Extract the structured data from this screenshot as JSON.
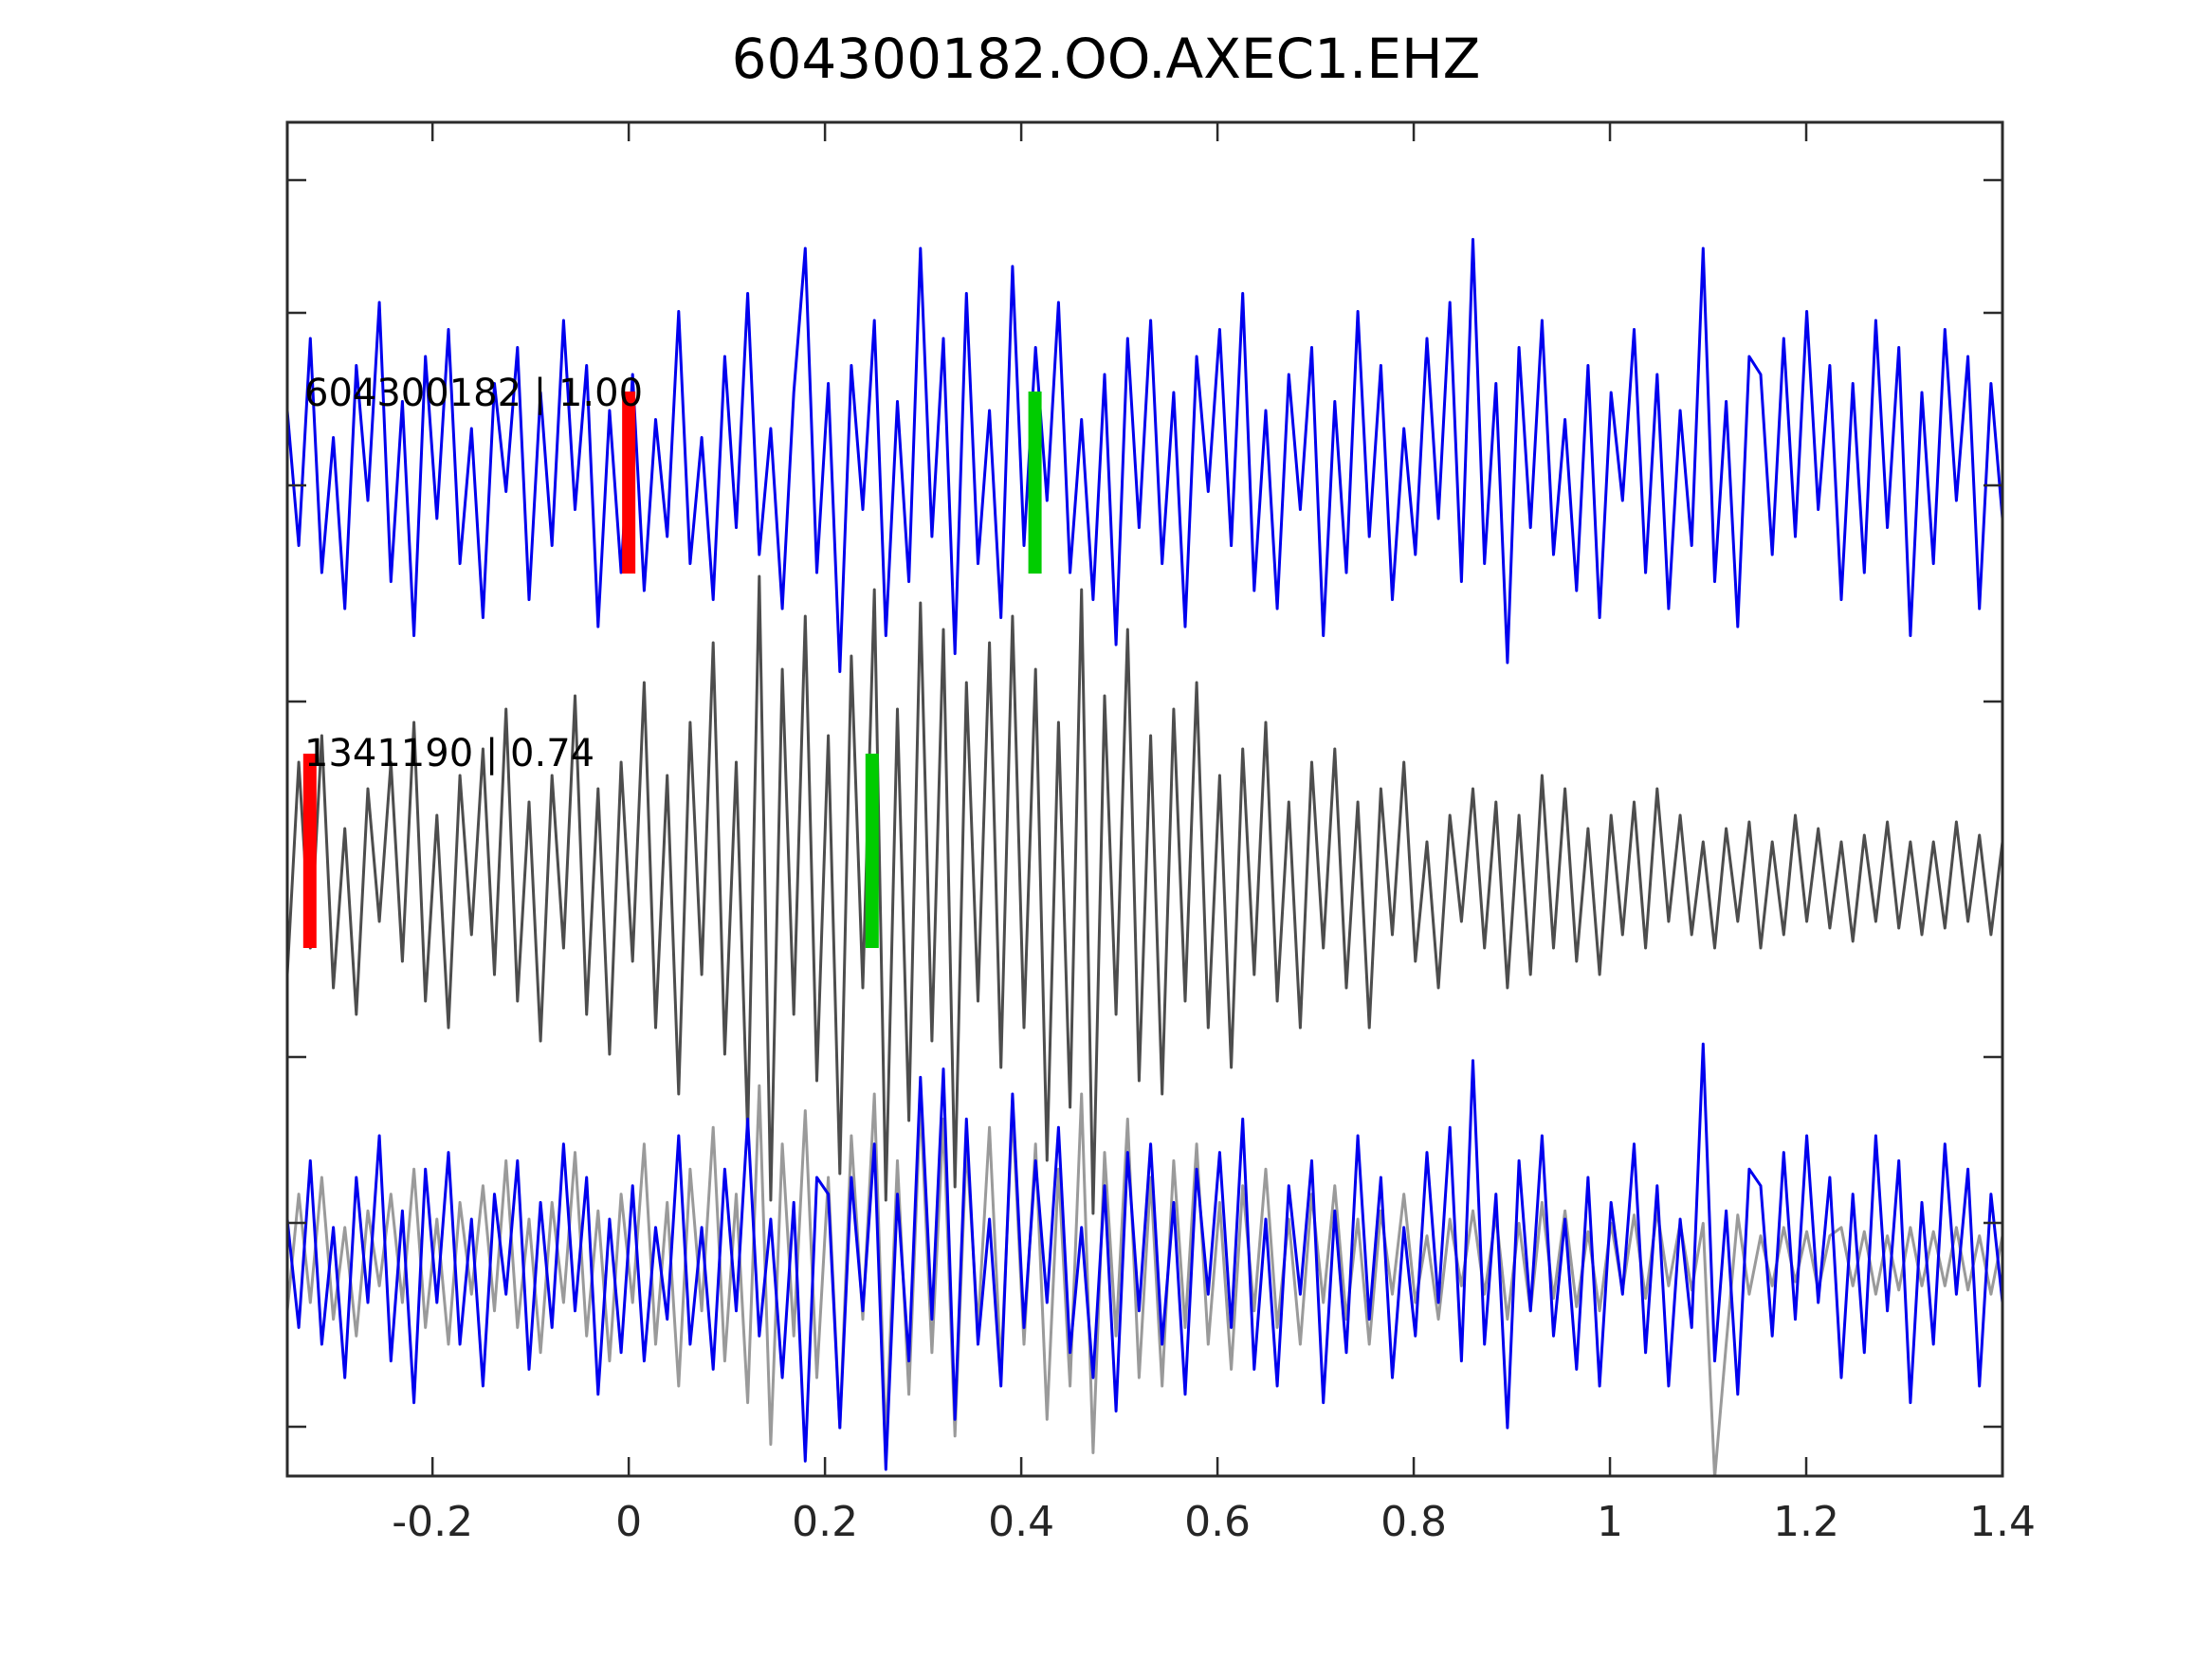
{
  "title": "604300182.OO.AXEC1.EHZ",
  "chart_data": {
    "type": "line",
    "title": "604300182.OO.AXEC1.EHZ",
    "xlabel": "",
    "ylabel": "",
    "xlim": [
      -0.348,
      1.4
    ],
    "grid": false,
    "legend": "none",
    "background": "#ffffff",
    "xticks": {
      "values": [
        -0.2,
        0,
        0.2,
        0.4,
        0.6,
        0.8,
        1.0,
        1.2,
        1.4
      ],
      "labels": [
        "-0.2",
        "0",
        "0.2",
        "0.4",
        "0.6",
        "0.8",
        "1",
        "1.2",
        "1.4"
      ]
    },
    "colors": {
      "blue": "#0000EE",
      "dark_gray": "#4D4D4D",
      "light_gray": "#9A9A9A",
      "red": "#FF0000",
      "green": "#00CC00",
      "axis": "#2b2b2b"
    },
    "traces": [
      {
        "id": "template",
        "label": "604300182 | 1.00",
        "event_id": "604300182",
        "correlation": "1.00",
        "markers": [
          {
            "t": 0.0,
            "color": "red"
          },
          {
            "t": 0.414,
            "color": "green"
          }
        ],
        "series": [
          {
            "color": "blue",
            "values": [
              0.6,
              -0.9,
              1.4,
              -1.2,
              0.3,
              -1.6,
              1.1,
              -0.4,
              1.8,
              -1.3,
              0.7,
              -1.9,
              1.2,
              -0.6,
              1.5,
              -1.1,
              0.4,
              -1.7,
              0.9,
              -0.3,
              1.3,
              -1.5,
              0.8,
              -0.9,
              1.6,
              -0.5,
              1.1,
              -1.8,
              0.6,
              -1.2,
              1.0,
              -1.4,
              0.5,
              -0.8,
              1.7,
              -1.1,
              0.3,
              -1.5,
              1.2,
              -0.7,
              1.9,
              -1.0,
              0.4,
              -1.6,
              0.8,
              2.4,
              -1.2,
              0.9,
              -2.3,
              1.1,
              -0.5,
              1.6,
              -1.9,
              0.7,
              -1.3,
              2.4,
              -0.8,
              1.4,
              -2.1,
              1.9,
              -1.1,
              0.6,
              -1.7,
              2.2,
              -0.9,
              1.3,
              -0.4,
              1.8,
              -1.2,
              0.5,
              -1.5,
              1.0,
              -2.0,
              1.4,
              -0.7,
              1.6,
              -1.1,
              0.8,
              -1.8,
              1.2,
              -0.3,
              1.5,
              -0.9,
              1.9,
              -1.4,
              0.6,
              -1.6,
              1.0,
              -0.5,
              1.3,
              -1.9,
              0.7,
              -1.2,
              1.7,
              -0.8,
              1.1,
              -1.5,
              0.4,
              -1.0,
              1.4,
              -0.6,
              1.8,
              -1.3,
              2.5,
              -1.1,
              0.9,
              -2.2,
              1.3,
              -0.7,
              1.6,
              -1.0,
              0.5,
              -1.4,
              1.1,
              -1.7,
              0.8,
              -0.4,
              1.5,
              -1.2,
              1.0,
              -1.6,
              0.6,
              -0.9,
              2.4,
              -1.3,
              0.7,
              -1.8,
              1.2,
              1.0,
              -1.0,
              1.4,
              -0.8,
              1.7,
              -0.5,
              1.1,
              -1.5,
              0.9,
              -1.2,
              1.6,
              -0.7,
              1.3,
              -1.9,
              0.8,
              -1.1,
              1.5,
              -0.4,
              1.2,
              -1.6,
              0.9,
              -0.6
            ]
          }
        ]
      },
      {
        "id": "detection",
        "label": "1341190 | 0.74",
        "event_id": "1341190",
        "correlation": "0.74",
        "markers": [
          {
            "t": -0.325,
            "color": "red"
          },
          {
            "t": 0.248,
            "color": "green"
          }
        ],
        "series": [
          {
            "color": "dark_gray",
            "values": [
              -0.7,
              0.9,
              -0.5,
              1.1,
              -0.8,
              0.4,
              -1.0,
              0.7,
              -0.3,
              0.9,
              -0.6,
              1.2,
              -0.9,
              0.5,
              -1.1,
              0.8,
              -0.4,
              1.0,
              -0.7,
              1.3,
              -0.9,
              0.6,
              -1.2,
              0.8,
              -0.5,
              1.4,
              -1.0,
              0.7,
              -1.3,
              0.9,
              -0.6,
              1.5,
              -1.1,
              0.8,
              -1.6,
              1.2,
              -0.7,
              1.8,
              -1.3,
              0.9,
              -1.9,
              2.3,
              -2.4,
              1.6,
              -1.0,
              2.0,
              -1.5,
              1.1,
              -2.2,
              1.7,
              -0.8,
              2.2,
              -2.4,
              1.3,
              -1.8,
              2.1,
              -1.2,
              1.9,
              -2.3,
              1.5,
              -0.9,
              1.8,
              -1.4,
              2.0,
              -1.1,
              1.6,
              -2.1,
              1.2,
              -1.7,
              2.2,
              -2.5,
              1.4,
              -1.0,
              1.9,
              -1.5,
              1.1,
              -1.6,
              1.3,
              -0.9,
              1.5,
              -1.1,
              0.8,
              -1.4,
              1.0,
              -0.7,
              1.2,
              -0.9,
              0.6,
              -1.1,
              0.9,
              -0.5,
              1.0,
              -0.8,
              0.6,
              -1.1,
              0.7,
              -0.4,
              0.9,
              -0.6,
              0.3,
              -0.8,
              0.5,
              -0.3,
              0.7,
              -0.5,
              0.6,
              -0.8,
              0.5,
              -0.7,
              0.8,
              -0.5,
              0.7,
              -0.6,
              0.4,
              -0.7,
              0.5,
              -0.4,
              0.6,
              -0.5,
              0.7,
              -0.3,
              0.5,
              -0.4,
              0.3,
              -0.5,
              0.4,
              -0.3,
              0.45,
              -0.5,
              0.3,
              -0.4,
              0.5,
              -0.3,
              0.4,
              -0.35,
              0.3,
              -0.45,
              0.35,
              -0.3,
              0.45,
              -0.35,
              0.3,
              -0.4,
              0.3,
              -0.35,
              0.45,
              -0.3,
              0.35,
              -0.4,
              0.3
            ]
          }
        ]
      },
      {
        "id": "overlay",
        "label": "",
        "markers": [],
        "series": [
          {
            "color": "light_gray",
            "values": [
              -0.6,
              0.8,
              -0.5,
              1.0,
              -0.7,
              0.4,
              -0.9,
              0.6,
              -0.3,
              0.8,
              -0.5,
              1.1,
              -0.8,
              0.5,
              -1.0,
              0.7,
              -0.4,
              0.9,
              -0.6,
              1.2,
              -0.8,
              0.5,
              -1.1,
              0.7,
              -0.5,
              1.3,
              -0.9,
              0.6,
              -1.2,
              0.8,
              -0.5,
              1.4,
              -1.0,
              0.7,
              -1.5,
              1.1,
              -0.6,
              1.6,
              -1.2,
              0.8,
              -1.7,
              2.1,
              -2.2,
              1.4,
              -0.9,
              1.8,
              -1.4,
              1.0,
              -2.0,
              1.5,
              -0.7,
              2.0,
              -2.2,
              1.2,
              -1.6,
              1.9,
              -1.1,
              1.7,
              -2.1,
              1.4,
              -0.8,
              1.6,
              -1.3,
              1.8,
              -1.0,
              1.4,
              -1.9,
              1.1,
              -1.5,
              2.0,
              -2.3,
              1.3,
              -0.9,
              1.7,
              -1.4,
              1.0,
              -1.5,
              1.2,
              -0.8,
              1.4,
              -1.0,
              0.7,
              -1.3,
              0.9,
              -0.6,
              1.1,
              -0.8,
              0.5,
              -1.0,
              0.8,
              -0.5,
              0.9,
              -0.7,
              0.5,
              -1.0,
              0.6,
              -0.4,
              0.8,
              -0.5,
              0.3,
              -0.7,
              0.5,
              -0.3,
              0.6,
              -0.4,
              0.55,
              -0.7,
              0.45,
              -0.6,
              0.7,
              -0.45,
              0.6,
              -0.55,
              0.35,
              -0.6,
              0.45,
              -0.35,
              0.55,
              -0.45,
              0.6,
              -0.3,
              0.45,
              -0.35,
              0.45,
              -2.6,
              -1.0,
              0.55,
              -0.4,
              0.3,
              -0.3,
              0.4,
              -0.25,
              0.35,
              -0.35,
              0.3,
              0.4,
              -0.3,
              0.35,
              -0.4,
              0.3,
              -0.35,
              0.4,
              -0.3,
              0.35,
              -0.3,
              0.4,
              -0.35,
              0.3,
              -0.4,
              0.3
            ]
          },
          {
            "color": "blue",
            "values": [
              0.5,
              -0.8,
              1.2,
              -1.0,
              0.4,
              -1.4,
              1.0,
              -0.5,
              1.5,
              -1.2,
              0.6,
              -1.7,
              1.1,
              -0.5,
              1.3,
              -1.0,
              0.5,
              -1.5,
              0.8,
              -0.4,
              1.2,
              -1.3,
              0.7,
              -0.8,
              1.4,
              -0.6,
              1.0,
              -1.6,
              0.5,
              -1.1,
              0.9,
              -1.2,
              0.4,
              -0.7,
              1.5,
              -1.0,
              0.4,
              -1.3,
              1.1,
              -0.6,
              1.7,
              -0.9,
              0.5,
              -1.4,
              0.7,
              -2.4,
              1.0,
              0.8,
              -2.0,
              1.0,
              -0.6,
              1.4,
              -2.5,
              0.8,
              -1.2,
              2.2,
              -0.7,
              2.3,
              -1.9,
              1.7,
              -1.0,
              0.5,
              -1.5,
              2.0,
              -0.8,
              1.2,
              -0.5,
              1.6,
              -1.1,
              0.4,
              -1.4,
              0.9,
              -1.8,
              1.3,
              -0.6,
              1.4,
              -1.0,
              0.7,
              -1.6,
              1.1,
              -0.4,
              1.3,
              -0.8,
              1.7,
              -1.3,
              0.5,
              -1.5,
              0.9,
              -0.4,
              1.2,
              -1.7,
              0.6,
              -1.1,
              1.5,
              -0.7,
              1.0,
              -1.4,
              0.4,
              -0.9,
              1.3,
              -0.5,
              1.6,
              -1.2,
              2.4,
              -1.0,
              0.8,
              -2.0,
              1.2,
              -0.6,
              1.5,
              -0.9,
              0.5,
              -1.3,
              1.0,
              -1.5,
              0.7,
              -0.4,
              1.4,
              -1.1,
              0.9,
              -1.5,
              0.5,
              -0.8,
              2.6,
              -1.2,
              0.6,
              -1.6,
              1.1,
              0.9,
              -0.9,
              1.3,
              -0.7,
              1.5,
              -0.5,
              1.0,
              -1.4,
              0.8,
              -1.1,
              1.5,
              -0.6,
              1.2,
              -1.7,
              0.7,
              -1.0,
              1.4,
              -0.4,
              1.1,
              -1.5,
              0.8,
              -0.5
            ]
          }
        ]
      }
    ]
  }
}
